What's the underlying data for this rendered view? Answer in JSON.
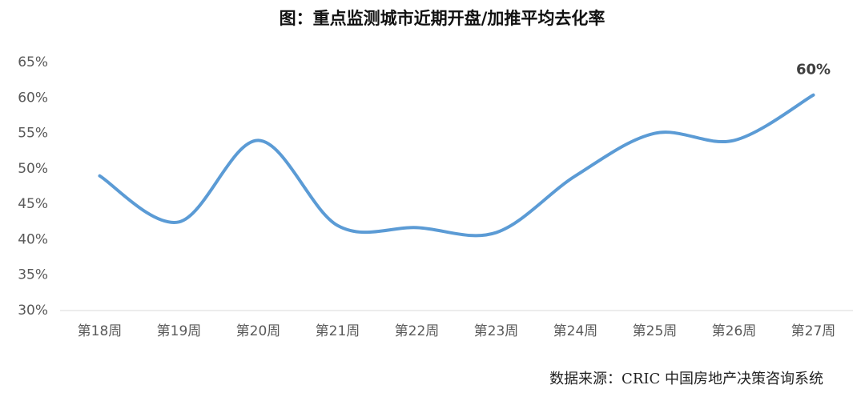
{
  "chart_data": {
    "type": "line",
    "title": "图：重点监测城市近期开盘/加推平均去化率",
    "categories": [
      "第18周",
      "第19周",
      "第20周",
      "第21周",
      "第22周",
      "第23周",
      "第24周",
      "第25周",
      "第26周",
      "第27周"
    ],
    "values": [
      49,
      42.5,
      54,
      42,
      41.7,
      41,
      49,
      55,
      54,
      60.4
    ],
    "value_labels": [
      null,
      null,
      null,
      null,
      null,
      null,
      null,
      null,
      null,
      "60%"
    ],
    "color": "#5b9bd5",
    "ylim": [
      30,
      65
    ],
    "yticks": [
      {
        "value": 30,
        "label": "30%"
      },
      {
        "value": 35,
        "label": "35%"
      },
      {
        "value": 40,
        "label": "40%"
      },
      {
        "value": 45,
        "label": "45%"
      },
      {
        "value": 50,
        "label": "50%"
      },
      {
        "value": 55,
        "label": "55%"
      },
      {
        "value": 60,
        "label": "60%"
      },
      {
        "value": 65,
        "label": "65%"
      }
    ],
    "grid": false,
    "source": "数据来源：CRIC 中国房地产决策咨询系统"
  }
}
